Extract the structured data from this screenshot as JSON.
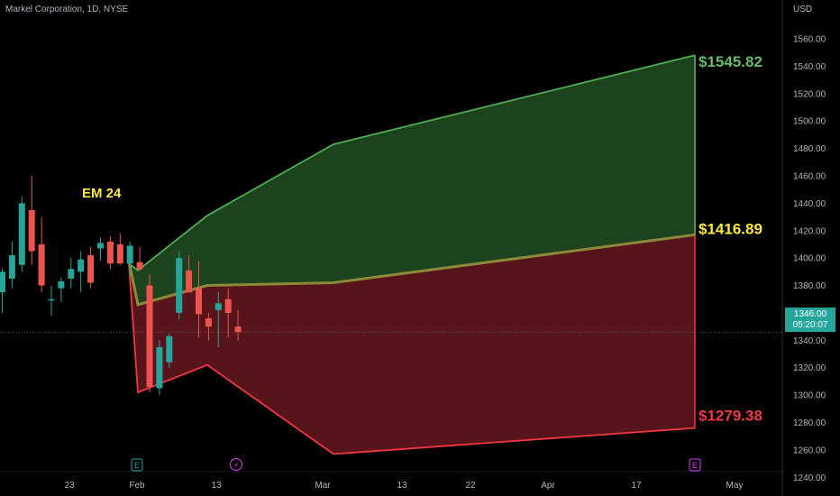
{
  "header": {
    "symbol_title": "Markel Corporation, 1D, NYSE",
    "currency": "USD"
  },
  "price_tag": {
    "price": "1346.00",
    "countdown": "05:20:07"
  },
  "colors": {
    "background": "#000000",
    "axis_text": "#b2b5be",
    "up_candle": "#26a69a",
    "down_candle": "#ef5350",
    "upper_line": "#4caf50",
    "upper_fill": "#1e4620",
    "lower_line": "#f23645",
    "lower_fill": "#5c161c",
    "mid_line": "#8a8a3a",
    "label_upper": "#66bb6a",
    "label_mid": "#ffeb3b",
    "label_lower": "#f23645",
    "em_label": "#ffeb3b"
  },
  "chart_data": {
    "type": "candlestick",
    "y_axis": {
      "range": [
        1227,
        1575
      ],
      "ticks": [
        1240,
        1260,
        1280,
        1300,
        1320,
        1340,
        1360,
        1380,
        1400,
        1420,
        1440,
        1460,
        1480,
        1500,
        1520,
        1540,
        1560
      ],
      "tick_labels": [
        "1240.00",
        "1260.00",
        "1280.00",
        "1300.00",
        "1320.00",
        "1340.00",
        "1360.00",
        "1380.00",
        "1400.00",
        "1420.00",
        "1440.00",
        "1460.00",
        "1480.00",
        "1500.00",
        "1520.00",
        "1540.00",
        "1560.00"
      ]
    },
    "x_axis": {
      "tick_labels": [
        "23",
        "Feb",
        "13",
        "Mar",
        "13",
        "22",
        "Apr",
        "17",
        "May"
      ]
    },
    "candles": [
      {
        "o": 1375,
        "h": 1392,
        "l": 1360,
        "c": 1390
      },
      {
        "o": 1385,
        "h": 1412,
        "l": 1378,
        "c": 1402
      },
      {
        "o": 1395,
        "h": 1445,
        "l": 1390,
        "c": 1440
      },
      {
        "o": 1435,
        "h": 1460,
        "l": 1395,
        "c": 1405
      },
      {
        "o": 1410,
        "h": 1430,
        "l": 1375,
        "c": 1380
      },
      {
        "o": 1370,
        "h": 1380,
        "l": 1358,
        "c": 1370
      },
      {
        "o": 1378,
        "h": 1386,
        "l": 1368,
        "c": 1383
      },
      {
        "o": 1385,
        "h": 1400,
        "l": 1378,
        "c": 1392
      },
      {
        "o": 1390,
        "h": 1405,
        "l": 1375,
        "c": 1399
      },
      {
        "o": 1402,
        "h": 1408,
        "l": 1378,
        "c": 1382
      },
      {
        "o": 1407,
        "h": 1415,
        "l": 1398,
        "c": 1411
      },
      {
        "o": 1412,
        "h": 1416,
        "l": 1392,
        "c": 1396
      },
      {
        "o": 1410,
        "h": 1418,
        "l": 1395,
        "c": 1396
      },
      {
        "o": 1396,
        "h": 1412,
        "l": 1388,
        "c": 1409
      },
      {
        "o": 1397,
        "h": 1408,
        "l": 1391,
        "c": 1392
      },
      {
        "o": 1380,
        "h": 1388,
        "l": 1302,
        "c": 1306
      },
      {
        "o": 1305,
        "h": 1340,
        "l": 1300,
        "c": 1335
      },
      {
        "o": 1324,
        "h": 1345,
        "l": 1320,
        "c": 1343
      },
      {
        "o": 1360,
        "h": 1405,
        "l": 1355,
        "c": 1400
      },
      {
        "o": 1391,
        "h": 1402,
        "l": 1375,
        "c": 1375
      },
      {
        "o": 1378,
        "h": 1398,
        "l": 1342,
        "c": 1359
      },
      {
        "o": 1356,
        "h": 1360,
        "l": 1340,
        "c": 1350
      },
      {
        "o": 1362,
        "h": 1375,
        "l": 1335,
        "c": 1367
      },
      {
        "o": 1370,
        "h": 1378,
        "l": 1342,
        "c": 1360
      },
      {
        "o": 1350,
        "h": 1362,
        "l": 1340,
        "c": 1346
      }
    ],
    "expected_move": {
      "label": "EM 24",
      "upper_target": "$1545.82",
      "mid_target": "$1416.89",
      "lower_target": "$1279.38",
      "upper_path": [
        1396,
        1391,
        1431,
        1483,
        1548
      ],
      "mid_path_values": [
        1398,
        1366,
        1380,
        1382,
        1417
      ],
      "lower_path": [
        1396,
        1302,
        1322,
        1257,
        1276
      ]
    },
    "current_price": 1346.0
  }
}
